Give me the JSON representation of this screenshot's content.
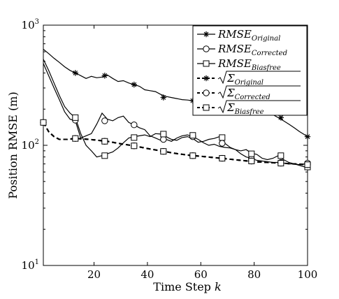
{
  "chart_data": {
    "type": "line",
    "xlabel": "Time Step k",
    "ylabel": "Position RMSE (m)",
    "xlim": [
      1,
      100
    ],
    "ylim": [
      10,
      1000
    ],
    "yscale": "log",
    "grid": false,
    "legend_position": "top-right",
    "x_ticks": [
      20,
      40,
      60,
      80,
      100
    ],
    "x_tick_labels": [
      "20",
      "40",
      "60",
      "80",
      "100"
    ],
    "y_ticks": [
      10,
      100,
      1000
    ],
    "y_tick_labels": [
      "10^1",
      "10^2",
      "10^3"
    ],
    "series": [
      {
        "name": "RMSE_Original",
        "legend_base": "RMSE",
        "legend_sub": "Original",
        "style": "solid",
        "marker": "asterisk",
        "x": [
          1,
          3,
          5,
          7,
          9,
          11,
          13,
          15,
          17,
          19,
          21,
          23,
          25,
          27,
          29,
          31,
          33,
          35,
          37,
          39,
          41,
          43,
          45,
          47,
          49,
          51,
          53,
          55,
          57,
          59,
          61,
          63,
          65,
          67,
          69,
          71,
          73,
          75,
          77,
          79,
          81,
          83,
          85,
          87,
          89,
          91,
          93,
          95,
          97,
          99,
          100
        ],
        "y": [
          630,
          580,
          530,
          490,
          450,
          420,
          400,
          380,
          360,
          375,
          365,
          370,
          385,
          360,
          340,
          345,
          330,
          320,
          310,
          290,
          285,
          280,
          265,
          255,
          250,
          245,
          240,
          238,
          235,
          232,
          230,
          235,
          228,
          230,
          225,
          220,
          215,
          210,
          205,
          200,
          195,
          190,
          185,
          180,
          170,
          160,
          150,
          140,
          130,
          122,
          118
        ],
        "marker_x": [
          13,
          24,
          35,
          46,
          57,
          68,
          79,
          90,
          100
        ],
        "marker_y": [
          400,
          380,
          320,
          250,
          235,
          225,
          200,
          170,
          118
        ]
      },
      {
        "name": "RMSE_Corrected",
        "legend_base": "RMSE",
        "legend_sub": "Corrected",
        "style": "solid",
        "marker": "circle",
        "x": [
          1,
          3,
          5,
          7,
          9,
          11,
          13,
          15,
          17,
          19,
          21,
          23,
          25,
          27,
          29,
          31,
          33,
          35,
          37,
          39,
          41,
          43,
          45,
          47,
          49,
          51,
          53,
          55,
          57,
          59,
          61,
          63,
          65,
          67,
          69,
          71,
          73,
          75,
          77,
          79,
          81,
          83,
          85,
          87,
          89,
          91,
          93,
          95,
          97,
          99,
          100
        ],
        "y": [
          480,
          380,
          300,
          240,
          190,
          165,
          160,
          115,
          120,
          125,
          150,
          185,
          165,
          160,
          170,
          175,
          155,
          148,
          140,
          135,
          120,
          115,
          110,
          112,
          108,
          115,
          120,
          122,
          118,
          112,
          105,
          100,
          102,
          98,
          96,
          95,
          92,
          85,
          80,
          78,
          75,
          74,
          73,
          72,
          72,
          71,
          70,
          70,
          69,
          70,
          71
        ],
        "marker_x": [
          13,
          24,
          35,
          46,
          57,
          68,
          79,
          90,
          100
        ],
        "marker_y": [
          162,
          160,
          148,
          112,
          118,
          104,
          77,
          72,
          71
        ]
      },
      {
        "name": "RMSE_Biasfree",
        "legend_base": "RMSE",
        "legend_sub": "Biasfree",
        "style": "solid",
        "marker": "square",
        "x": [
          1,
          3,
          5,
          7,
          9,
          11,
          13,
          15,
          17,
          19,
          21,
          23,
          25,
          27,
          29,
          31,
          33,
          35,
          37,
          39,
          41,
          43,
          45,
          47,
          49,
          51,
          53,
          55,
          57,
          59,
          61,
          63,
          65,
          67,
          69,
          71,
          73,
          75,
          77,
          79,
          81,
          83,
          85,
          87,
          89,
          91,
          93,
          95,
          97,
          99,
          100
        ],
        "y": [
          520,
          420,
          330,
          260,
          210,
          185,
          170,
          125,
          100,
          90,
          80,
          82,
          85,
          88,
          95,
          105,
          115,
          118,
          120,
          122,
          118,
          125,
          124,
          118,
          112,
          110,
          116,
          118,
          114,
          106,
          108,
          112,
          114,
          118,
          104,
          96,
          92,
          90,
          92,
          86,
          84,
          78,
          76,
          78,
          82,
          76,
          72,
          70,
          68,
          66,
          66
        ],
        "marker_x": [
          13,
          24,
          35,
          46,
          57,
          68,
          79,
          90,
          100
        ],
        "marker_y": [
          170,
          82,
          116,
          124,
          121,
          116,
          85,
          82,
          66
        ]
      },
      {
        "name": "sqrt(Σ_Original)",
        "legend_base": "Σ",
        "legend_sub": "Original",
        "style": "dashed",
        "marker": "asterisk",
        "x": [
          1,
          3,
          5,
          7,
          10,
          13,
          16,
          20,
          25,
          30,
          35,
          40,
          45,
          50,
          55,
          60,
          65,
          70,
          75,
          80,
          85,
          90,
          95,
          100
        ],
        "y": [
          155,
          130,
          118,
          112,
          112,
          114,
          113,
          111,
          108,
          103,
          99,
          94,
          90,
          86,
          83,
          81,
          79,
          77,
          75,
          73,
          72,
          71,
          70,
          69
        ],
        "marker_x": [
          1,
          13,
          24,
          35,
          46,
          57,
          68,
          79,
          90,
          100
        ],
        "marker_y": [
          155,
          114,
          108,
          99,
          89,
          82,
          78,
          74,
          71,
          69
        ]
      },
      {
        "name": "sqrt(Σ_Corrected)",
        "legend_base": "Σ",
        "legend_sub": "Corrected",
        "style": "dashed",
        "marker": "circle",
        "x": [
          1,
          3,
          5,
          7,
          10,
          13,
          16,
          20,
          25,
          30,
          35,
          40,
          45,
          50,
          55,
          60,
          65,
          70,
          75,
          80,
          85,
          90,
          95,
          100
        ],
        "y": [
          155,
          130,
          118,
          112,
          112,
          114,
          113,
          111,
          108,
          103,
          99,
          94,
          90,
          86,
          83,
          81,
          79,
          77,
          75,
          73,
          72,
          71,
          70,
          69
        ],
        "marker_x": [
          1,
          13,
          24,
          35,
          46,
          57,
          68,
          79,
          90,
          100
        ],
        "marker_y": [
          155,
          114,
          108,
          99,
          89,
          82,
          78,
          74,
          71,
          69
        ]
      },
      {
        "name": "sqrt(Σ_Biasfree)",
        "legend_base": "Σ",
        "legend_sub": "Biasfree",
        "style": "dashed",
        "marker": "square",
        "x": [
          1,
          3,
          5,
          7,
          10,
          13,
          16,
          20,
          25,
          30,
          35,
          40,
          45,
          50,
          55,
          60,
          65,
          70,
          75,
          80,
          85,
          90,
          95,
          100
        ],
        "y": [
          155,
          130,
          118,
          112,
          112,
          114,
          113,
          111,
          108,
          103,
          99,
          94,
          90,
          86,
          83,
          81,
          79,
          77,
          75,
          73,
          72,
          71,
          70,
          69
        ],
        "marker_x": [
          1,
          13,
          24,
          35,
          46,
          57,
          68,
          79,
          90,
          100
        ],
        "marker_y": [
          155,
          114,
          108,
          99,
          89,
          82,
          78,
          74,
          71,
          69
        ]
      }
    ]
  }
}
